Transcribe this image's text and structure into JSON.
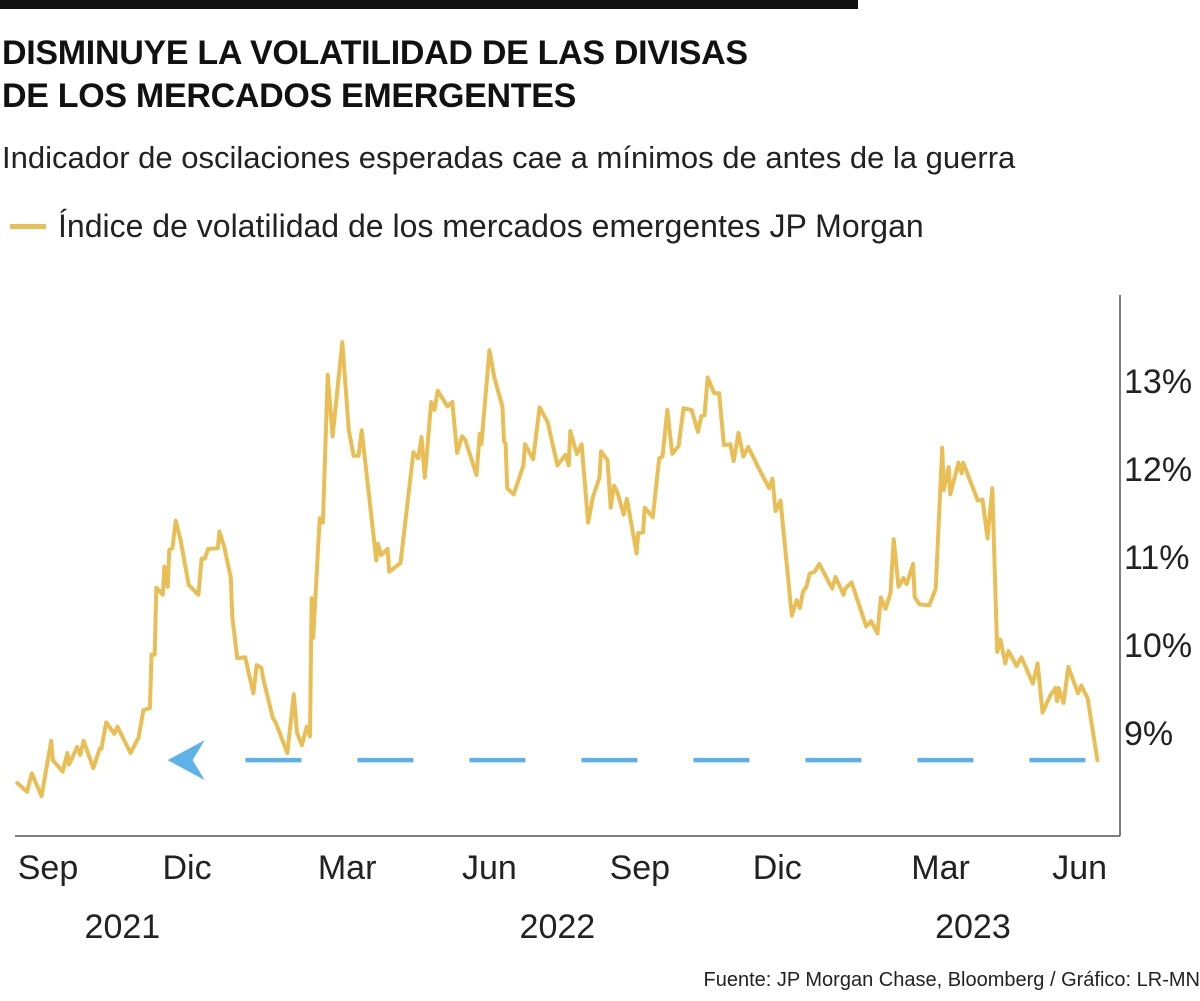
{
  "header": {
    "title_lines": [
      "DISMINUYE LA VOLATILIDAD DE LAS DIVISAS",
      "DE LOS MERCADOS EMERGENTES"
    ],
    "subtitle": "Indicador de oscilaciones esperadas cae a mínimos de antes de la guerra"
  },
  "footer": {
    "source": "Fuente: JP Morgan Chase, Bloomberg / Gráfico: LR-MN"
  },
  "chart_data": {
    "type": "line",
    "title": "DISMINUYE LA VOLATILIDAD DE LAS DIVISAS DE LOS MERCADOS EMERGENTES",
    "subtitle": "Indicador de oscilaciones esperadas cae a mínimos de antes de la guerra",
    "xlabel": "",
    "ylabel": "",
    "ylim": [
      8.2,
      13.9
    ],
    "y_axis_position": "right",
    "grid": false,
    "legend_position": "top-left",
    "y_ticks": [
      {
        "value": 13,
        "label": "13%"
      },
      {
        "value": 12,
        "label": "12%"
      },
      {
        "value": 11,
        "label": "11%"
      },
      {
        "value": 10,
        "label": "10%"
      },
      {
        "value": 9,
        "label": "9%"
      }
    ],
    "x_ticks": [
      {
        "date": "2021-09-15",
        "label": "Sep"
      },
      {
        "date": "2021-12-10",
        "label": "Dic"
      },
      {
        "date": "2022-03-19",
        "label": "Mar"
      },
      {
        "date": "2022-06-15",
        "label": "Jun"
      },
      {
        "date": "2022-09-16",
        "label": "Sep"
      },
      {
        "date": "2022-12-10",
        "label": "Dic"
      },
      {
        "date": "2023-03-21",
        "label": "Mar"
      },
      {
        "date": "2023-06-15",
        "label": "Jun"
      }
    ],
    "year_labels": [
      {
        "date": "2021-10-31",
        "label": "2021"
      },
      {
        "date": "2022-07-27",
        "label": "2022"
      },
      {
        "date": "2023-04-10",
        "label": "2023"
      }
    ],
    "series": [
      {
        "name": "Índice de volatilidad de los mercados emergentes JP Morgan",
        "color": "#E9BE55",
        "points": [
          [
            "2021-08-27",
            8.42
          ],
          [
            "2021-09-02",
            8.32
          ],
          [
            "2021-09-05",
            8.53
          ],
          [
            "2021-09-11",
            8.27
          ],
          [
            "2021-09-17",
            8.9
          ],
          [
            "2021-09-18",
            8.68
          ],
          [
            "2021-09-24",
            8.55
          ],
          [
            "2021-09-27",
            8.76
          ],
          [
            "2021-09-28",
            8.63
          ],
          [
            "2021-10-03",
            8.83
          ],
          [
            "2021-10-05",
            8.74
          ],
          [
            "2021-10-07",
            8.9
          ],
          [
            "2021-10-13",
            8.59
          ],
          [
            "2021-10-17",
            8.81
          ],
          [
            "2021-10-18",
            8.81
          ],
          [
            "2021-10-21",
            9.11
          ],
          [
            "2021-10-26",
            8.98
          ],
          [
            "2021-10-28",
            9.06
          ],
          [
            "2021-11-05",
            8.76
          ],
          [
            "2021-11-10",
            8.94
          ],
          [
            "2021-11-13",
            9.25
          ],
          [
            "2021-11-17",
            9.27
          ],
          [
            "2021-11-18",
            9.88
          ],
          [
            "2021-11-20",
            9.88
          ],
          [
            "2021-11-21",
            10.64
          ],
          [
            "2021-11-25",
            10.56
          ],
          [
            "2021-11-26",
            10.88
          ],
          [
            "2021-11-28",
            10.65
          ],
          [
            "2021-11-29",
            11.07
          ],
          [
            "2021-12-01",
            11.09
          ],
          [
            "2021-12-03",
            11.4
          ],
          [
            "2021-12-06",
            11.18
          ],
          [
            "2021-12-11",
            10.67
          ],
          [
            "2021-12-17",
            10.56
          ],
          [
            "2021-12-19",
            10.97
          ],
          [
            "2021-12-21",
            10.97
          ],
          [
            "2021-12-23",
            11.08
          ],
          [
            "2021-12-29",
            11.09
          ],
          [
            "2021-12-30",
            11.28
          ],
          [
            "2022-01-02",
            11.1
          ],
          [
            "2022-01-06",
            10.76
          ],
          [
            "2022-01-07",
            10.31
          ],
          [
            "2022-01-10",
            9.84
          ],
          [
            "2022-01-15",
            9.85
          ],
          [
            "2022-01-17",
            9.68
          ],
          [
            "2022-01-20",
            9.44
          ],
          [
            "2022-01-22",
            9.76
          ],
          [
            "2022-01-25",
            9.73
          ],
          [
            "2022-01-26",
            9.61
          ],
          [
            "2022-02-01",
            9.16
          ],
          [
            "2022-02-03",
            9.1
          ],
          [
            "2022-02-10",
            8.76
          ],
          [
            "2022-02-14",
            9.43
          ],
          [
            "2022-02-16",
            8.99
          ],
          [
            "2022-02-19",
            8.85
          ],
          [
            "2022-02-22",
            9.06
          ],
          [
            "2022-02-24",
            8.95
          ],
          [
            "2022-02-25",
            10.52
          ],
          [
            "2022-02-26",
            10.07
          ],
          [
            "2022-03-02",
            11.43
          ],
          [
            "2022-03-04",
            11.38
          ],
          [
            "2022-03-07",
            13.06
          ],
          [
            "2022-03-10",
            12.36
          ],
          [
            "2022-03-16",
            13.43
          ],
          [
            "2022-03-20",
            12.43
          ],
          [
            "2022-03-23",
            12.14
          ],
          [
            "2022-03-26",
            12.14
          ],
          [
            "2022-03-28",
            12.43
          ],
          [
            "2022-04-06",
            10.95
          ],
          [
            "2022-04-07",
            11.14
          ],
          [
            "2022-04-09",
            11.01
          ],
          [
            "2022-04-13",
            11.08
          ],
          [
            "2022-04-14",
            10.82
          ],
          [
            "2022-04-21",
            10.92
          ],
          [
            "2022-04-29",
            12.18
          ],
          [
            "2022-05-02",
            12.11
          ],
          [
            "2022-05-04",
            12.35
          ],
          [
            "2022-05-06",
            11.89
          ],
          [
            "2022-05-10",
            12.75
          ],
          [
            "2022-05-12",
            12.66
          ],
          [
            "2022-05-14",
            12.88
          ],
          [
            "2022-05-20",
            12.7
          ],
          [
            "2022-05-23",
            12.75
          ],
          [
            "2022-05-26",
            12.17
          ],
          [
            "2022-05-29",
            12.36
          ],
          [
            "2022-05-31",
            12.32
          ],
          [
            "2022-06-07",
            11.92
          ],
          [
            "2022-06-09",
            12.39
          ],
          [
            "2022-06-10",
            12.27
          ],
          [
            "2022-06-15",
            13.34
          ],
          [
            "2022-06-18",
            13.03
          ],
          [
            "2022-06-23",
            12.7
          ],
          [
            "2022-06-24",
            12.3
          ],
          [
            "2022-06-25",
            12.28
          ],
          [
            "2022-06-26",
            11.77
          ],
          [
            "2022-06-30",
            11.7
          ],
          [
            "2022-07-06",
            12.03
          ],
          [
            "2022-07-07",
            12.27
          ],
          [
            "2022-07-12",
            12.1
          ],
          [
            "2022-07-16",
            12.69
          ],
          [
            "2022-07-21",
            12.52
          ],
          [
            "2022-07-27",
            12.03
          ],
          [
            "2022-08-01",
            12.15
          ],
          [
            "2022-08-03",
            12.03
          ],
          [
            "2022-08-04",
            12.42
          ],
          [
            "2022-08-08",
            12.16
          ],
          [
            "2022-08-11",
            12.27
          ],
          [
            "2022-08-15",
            11.38
          ],
          [
            "2022-08-18",
            11.67
          ],
          [
            "2022-08-22",
            11.89
          ],
          [
            "2022-08-23",
            12.19
          ],
          [
            "2022-08-27",
            12.09
          ],
          [
            "2022-08-29",
            11.55
          ],
          [
            "2022-08-31",
            11.8
          ],
          [
            "2022-09-02",
            11.73
          ],
          [
            "2022-09-06",
            11.47
          ],
          [
            "2022-09-08",
            11.65
          ],
          [
            "2022-09-14",
            11.03
          ],
          [
            "2022-09-15",
            11.26
          ],
          [
            "2022-09-18",
            11.27
          ],
          [
            "2022-09-19",
            11.55
          ],
          [
            "2022-09-24",
            11.44
          ],
          [
            "2022-09-28",
            12.11
          ],
          [
            "2022-09-30",
            12.13
          ],
          [
            "2022-10-03",
            12.66
          ],
          [
            "2022-10-06",
            12.16
          ],
          [
            "2022-10-10",
            12.25
          ],
          [
            "2022-10-13",
            12.68
          ],
          [
            "2022-10-18",
            12.66
          ],
          [
            "2022-10-22",
            12.41
          ],
          [
            "2022-10-24",
            12.59
          ],
          [
            "2022-10-26",
            12.6
          ],
          [
            "2022-10-28",
            13.03
          ],
          [
            "2022-11-01",
            12.85
          ],
          [
            "2022-11-04",
            12.85
          ],
          [
            "2022-11-07",
            12.26
          ],
          [
            "2022-11-11",
            12.27
          ],
          [
            "2022-11-13",
            12.08
          ],
          [
            "2022-11-16",
            12.4
          ],
          [
            "2022-11-19",
            12.13
          ],
          [
            "2022-11-22",
            12.24
          ],
          [
            "2022-11-29",
            11.98
          ],
          [
            "2022-12-05",
            11.77
          ],
          [
            "2022-12-07",
            11.88
          ],
          [
            "2022-12-09",
            11.51
          ],
          [
            "2022-12-12",
            11.63
          ],
          [
            "2022-12-19",
            10.32
          ],
          [
            "2022-12-22",
            10.5
          ],
          [
            "2022-12-24",
            10.41
          ],
          [
            "2022-12-26",
            10.6
          ],
          [
            "2022-12-28",
            10.65
          ],
          [
            "2022-12-30",
            10.8
          ],
          [
            "2023-01-02",
            10.82
          ],
          [
            "2023-01-05",
            10.91
          ],
          [
            "2023-01-13",
            10.63
          ],
          [
            "2023-01-15",
            10.76
          ],
          [
            "2023-01-20",
            10.56
          ],
          [
            "2023-01-21",
            10.63
          ],
          [
            "2023-01-25",
            10.7
          ],
          [
            "2023-02-03",
            10.2
          ],
          [
            "2023-02-06",
            10.26
          ],
          [
            "2023-02-10",
            10.12
          ],
          [
            "2023-02-12",
            10.53
          ],
          [
            "2023-02-15",
            10.4
          ],
          [
            "2023-02-18",
            10.58
          ],
          [
            "2023-02-20",
            11.19
          ],
          [
            "2023-02-23",
            10.65
          ],
          [
            "2023-02-26",
            10.75
          ],
          [
            "2023-02-28",
            10.68
          ],
          [
            "2023-03-04",
            10.91
          ],
          [
            "2023-03-05",
            10.53
          ],
          [
            "2023-03-08",
            10.45
          ],
          [
            "2023-03-14",
            10.44
          ],
          [
            "2023-03-18",
            10.63
          ],
          [
            "2023-03-22",
            12.23
          ],
          [
            "2023-03-23",
            11.75
          ],
          [
            "2023-03-26",
            12.01
          ],
          [
            "2023-03-27",
            11.7
          ],
          [
            "2023-04-01",
            12.06
          ],
          [
            "2023-04-03",
            11.94
          ],
          [
            "2023-04-04",
            12.06
          ],
          [
            "2023-04-13",
            11.63
          ],
          [
            "2023-04-16",
            11.64
          ],
          [
            "2023-04-19",
            11.2
          ],
          [
            "2023-04-22",
            11.77
          ],
          [
            "2023-04-25",
            9.91
          ],
          [
            "2023-04-27",
            10.05
          ],
          [
            "2023-04-30",
            9.78
          ],
          [
            "2023-05-02",
            9.92
          ],
          [
            "2023-05-07",
            9.75
          ],
          [
            "2023-05-10",
            9.85
          ],
          [
            "2023-05-17",
            9.55
          ],
          [
            "2023-05-20",
            9.78
          ],
          [
            "2023-05-23",
            9.22
          ],
          [
            "2023-05-28",
            9.42
          ],
          [
            "2023-05-31",
            9.5
          ],
          [
            "2023-06-01",
            9.35
          ],
          [
            "2023-06-02",
            9.5
          ],
          [
            "2023-06-05",
            9.33
          ],
          [
            "2023-06-08",
            9.74
          ],
          [
            "2023-06-14",
            9.44
          ],
          [
            "2023-06-16",
            9.53
          ],
          [
            "2023-06-20",
            9.38
          ],
          [
            "2023-06-26",
            8.68
          ]
        ]
      }
    ],
    "annotations": [
      {
        "type": "dashed-reference-line-with-arrow",
        "value": 8.68,
        "from": "2023-06-26",
        "to": "2021-11-28",
        "color": "#5DB3E8"
      }
    ]
  }
}
